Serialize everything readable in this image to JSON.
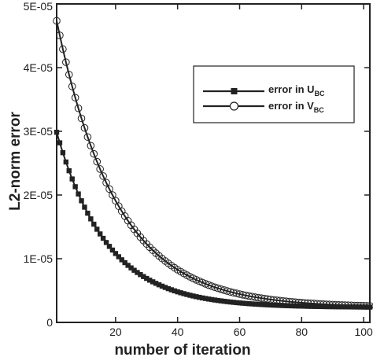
{
  "chart_data": {
    "type": "line",
    "xlabel": "number of iteration",
    "ylabel": "L2-norm error",
    "xlim": [
      1,
      102
    ],
    "ylim": [
      0,
      5e-05
    ],
    "xticks": [
      20,
      40,
      60,
      80,
      100
    ],
    "xtick_labels": [
      "20",
      "40",
      "60",
      "80",
      "100"
    ],
    "yticks": [
      0,
      1e-05,
      2e-05,
      3e-05,
      4e-05,
      5e-05
    ],
    "ytick_labels": [
      "0",
      "1E-05",
      "2E-05",
      "3E-05",
      "4E-05",
      "5E-05"
    ],
    "grid": false,
    "legend_position": "top-right",
    "series": [
      {
        "name": "error in U",
        "name_subscript": "BC",
        "marker": "filled-square",
        "color": "#222222",
        "model": {
          "floor": 2.35e-06,
          "amplitude": 2.75e-05,
          "rate": 0.062,
          "x0": 1
        },
        "x_start": 1,
        "x_end": 102,
        "x_step": 1
      },
      {
        "name": "error in V",
        "name_subscript": "BC",
        "marker": "open-circle",
        "color": "#222222",
        "model": {
          "floor": 2.35e-06,
          "amplitude": 4.5e-05,
          "rate": 0.052,
          "x0": 1
        },
        "x_start": 1,
        "x_end": 102,
        "x_step": 1
      }
    ]
  }
}
